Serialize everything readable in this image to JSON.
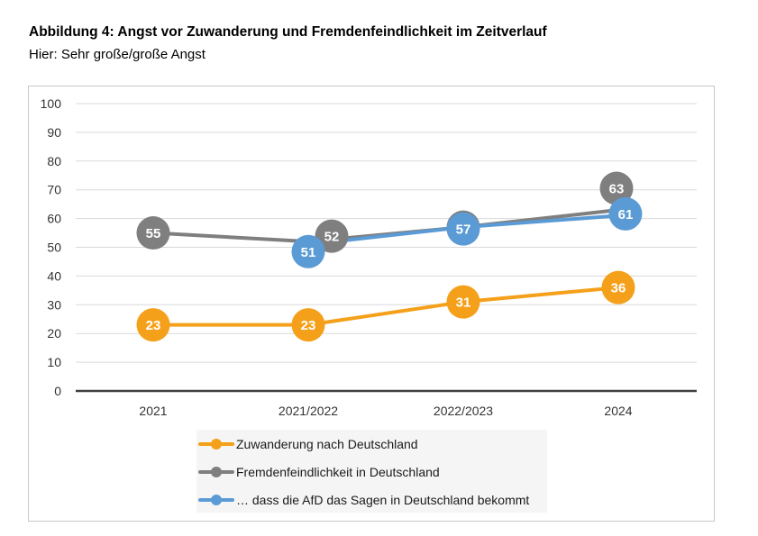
{
  "header": {
    "title": "Abbildung 4: Angst vor Zuwanderung und Fremdenfeindlichkeit im Zeitverlauf",
    "subtitle": "Hier: Sehr große/große Angst"
  },
  "chart_data": {
    "type": "line",
    "title": "Abbildung 4: Angst vor Zuwanderung und Fremdenfeindlichkeit im Zeitverlauf",
    "subtitle": "Hier: Sehr große/große Angst",
    "xlabel": "",
    "ylabel": "",
    "categories": [
      "2021",
      "2021/2022",
      "2022/2023",
      "2024"
    ],
    "ylim": [
      0,
      100
    ],
    "yticks": [
      0,
      10,
      20,
      30,
      40,
      50,
      60,
      70,
      80,
      90,
      100
    ],
    "grid": true,
    "legend_position": "bottom",
    "series": [
      {
        "name": "Zuwanderung nach Deutschland",
        "color": "#f5a01a",
        "values": [
          23,
          23,
          31,
          36
        ]
      },
      {
        "name": "Fremdenfeindlichkeit in Deutschland",
        "color": "#7f7f7f",
        "values": [
          55,
          52,
          57,
          63
        ]
      },
      {
        "name": "… dass die AfD das Sagen in Deutschland bekommt",
        "color": "#5b9bd5",
        "values": [
          null,
          51,
          57,
          61
        ]
      }
    ]
  }
}
